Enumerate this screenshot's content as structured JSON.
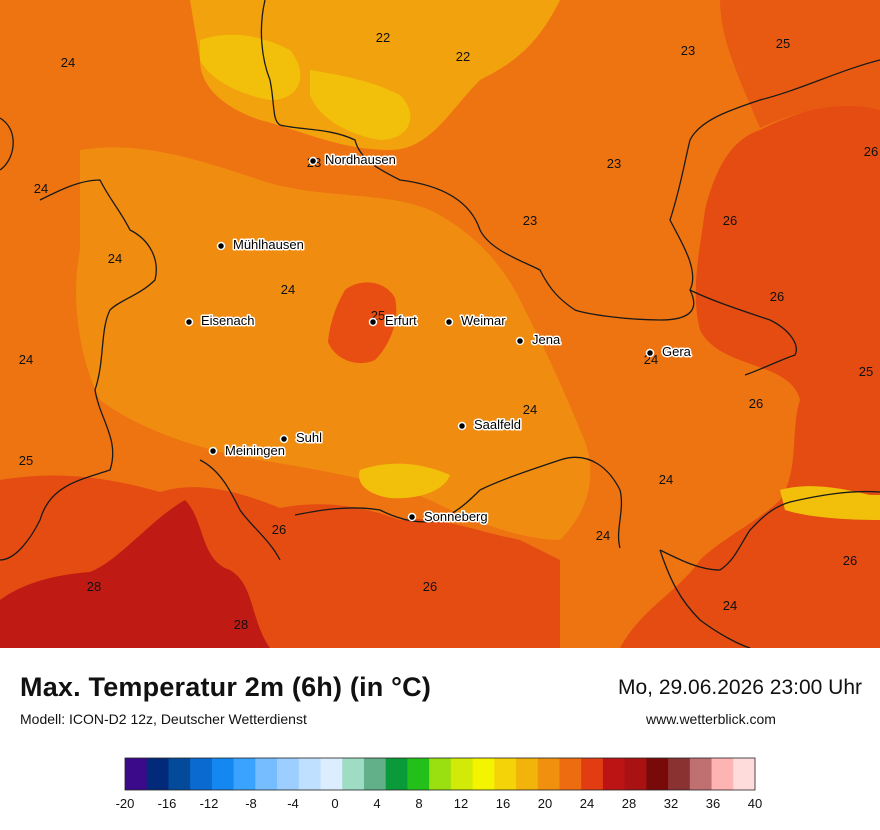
{
  "title": "Max. Temperatur 2m (6h) (in °C)",
  "model": "Modell: ICON-D2 12z, Deutscher Wetterdienst",
  "datetime": "Mo, 29.06.2026 23:00 Uhr",
  "website": "www.wetterblick.com",
  "cities": [
    {
      "name": "Nordhausen"
    },
    {
      "name": "Mühlhausen"
    },
    {
      "name": "Eisenach"
    },
    {
      "name": "Erfurt"
    },
    {
      "name": "Weimar"
    },
    {
      "name": "Jena"
    },
    {
      "name": "Gera"
    },
    {
      "name": "Saalfeld"
    },
    {
      "name": "Suhl"
    },
    {
      "name": "Meiningen"
    },
    {
      "name": "Sonneberg"
    }
  ],
  "values": [
    {
      "t": "22"
    },
    {
      "t": "22"
    },
    {
      "t": "23"
    },
    {
      "t": "25"
    },
    {
      "t": "24"
    },
    {
      "t": "23"
    },
    {
      "t": "26"
    },
    {
      "t": "24"
    },
    {
      "t": "23"
    },
    {
      "t": "26"
    },
    {
      "t": "24"
    },
    {
      "t": "24"
    },
    {
      "t": "26"
    },
    {
      "t": "24"
    },
    {
      "t": "25"
    },
    {
      "t": "25"
    },
    {
      "t": "24"
    },
    {
      "t": "26"
    },
    {
      "t": "24"
    },
    {
      "t": "25"
    },
    {
      "t": "24"
    },
    {
      "t": "26"
    },
    {
      "t": "24"
    },
    {
      "t": "26"
    },
    {
      "t": "28"
    },
    {
      "t": "26"
    },
    {
      "t": "24"
    },
    {
      "t": "28"
    },
    {
      "t": "23"
    }
  ],
  "legend": {
    "colors": [
      "#3a0a8a",
      "#032a7a",
      "#034a9a",
      "#0a6ad0",
      "#1488f0",
      "#3aa2ff",
      "#76bdff",
      "#9ccfff",
      "#bfe0ff",
      "#dcedff",
      "#9edcc4",
      "#62b08a",
      "#0a9a3a",
      "#22c018",
      "#9ae010",
      "#d2ea08",
      "#f4f400",
      "#f4d408",
      "#f2b40a",
      "#f0900e",
      "#ee6c10",
      "#e23c12",
      "#bc1414",
      "#a81212",
      "#780a0a",
      "#8a3232",
      "#c07070",
      "#ffb4b4",
      "#ffdcdc"
    ],
    "ticks": [
      "-20",
      "-16",
      "-12",
      "-8",
      "-4",
      "0",
      "4",
      "8",
      "12",
      "16",
      "20",
      "24",
      "28",
      "32",
      "36",
      "40"
    ]
  }
}
